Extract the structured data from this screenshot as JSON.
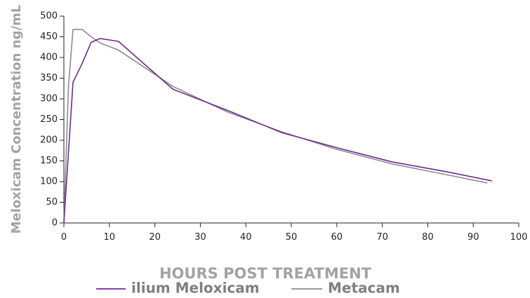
{
  "chart_data": {
    "type": "line",
    "title": "",
    "xlabel": "HOURS POST TREATMENT",
    "ylabel": "Meloxicam Concentration ng/mL",
    "xlim": [
      0,
      100
    ],
    "ylim": [
      0,
      500
    ],
    "x_ticks": [
      "0",
      "10",
      "20",
      "30",
      "40",
      "50",
      "60",
      "70",
      "80",
      "90",
      "100"
    ],
    "y_ticks": [
      "0",
      "50",
      "100",
      "150",
      "200",
      "250",
      "300",
      "350",
      "400",
      "450",
      "500"
    ],
    "grid": false,
    "legend_position": "bottom",
    "series": [
      {
        "name": "ilium Meloxicam",
        "color": "#6b2c91",
        "points": [
          [
            0,
            0
          ],
          [
            2,
            340
          ],
          [
            4,
            385
          ],
          [
            6,
            437
          ],
          [
            8,
            446
          ],
          [
            12,
            439
          ],
          [
            24,
            323
          ],
          [
            36,
            272
          ],
          [
            48,
            218
          ],
          [
            60,
            182
          ],
          [
            72,
            148
          ],
          [
            84,
            124
          ],
          [
            94,
            102
          ]
        ]
      },
      {
        "name": "Metacam",
        "color": "#8c8c8c",
        "points": [
          [
            0,
            0
          ],
          [
            1,
            330
          ],
          [
            2,
            468
          ],
          [
            4,
            468
          ],
          [
            6,
            450
          ],
          [
            8,
            435
          ],
          [
            12,
            418
          ],
          [
            24,
            330
          ],
          [
            36,
            268
          ],
          [
            48,
            220
          ],
          [
            60,
            178
          ],
          [
            72,
            143
          ],
          [
            84,
            117
          ],
          [
            93,
            97
          ]
        ]
      }
    ]
  }
}
